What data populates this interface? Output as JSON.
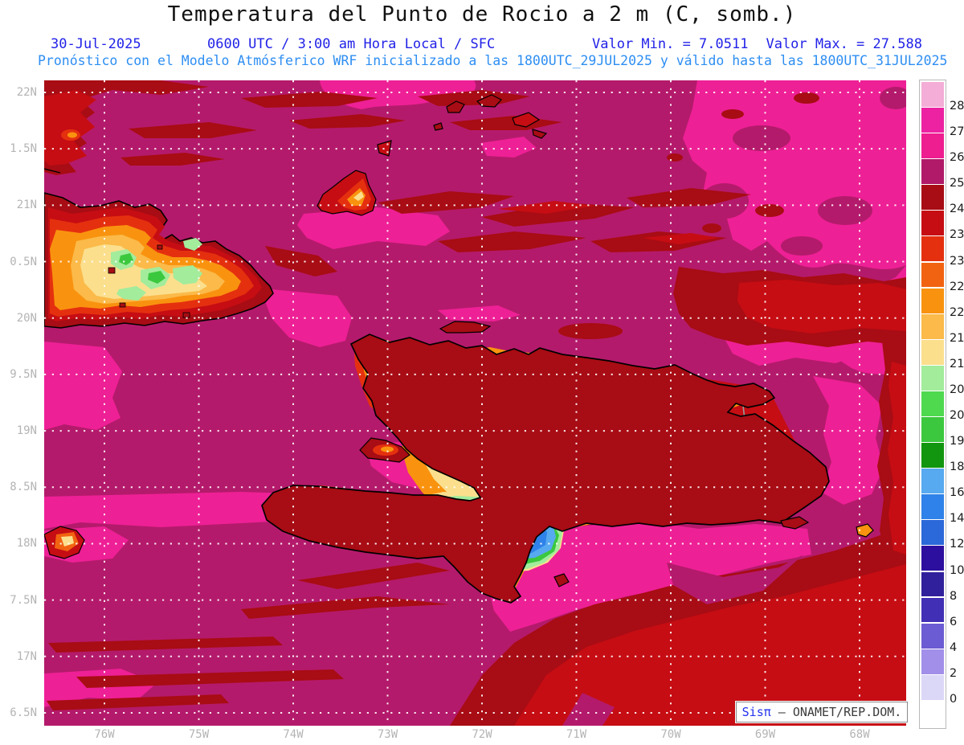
{
  "header": {
    "title": "Temperatura del Punto de Rocio a 2 m (C, somb.)",
    "date": "30-Jul-2025",
    "time_info": "0600 UTC / 3:00 am Hora Local / SFC",
    "valor_min": "Valor Min. = 7.0511",
    "valor_max": "Valor Max. = 27.588",
    "model_info": "Pronóstico con el Modelo Atmósferico WRF inicializado a las 1800UTC_29JUL2025 y válido hasta las  1800UTC_31JUL2025"
  },
  "axes": {
    "lat_labels": [
      "22N",
      "1.5N",
      "21N",
      "0.5N",
      "20N",
      "9.5N",
      "19N",
      "8.5N",
      "18N",
      "7.5N",
      "17N",
      "6.5N"
    ],
    "lon_labels": [
      "76W",
      "75W",
      "74W",
      "73W",
      "72W",
      "71W",
      "70W",
      "69W",
      "68W"
    ]
  },
  "colorbar": {
    "levels": [
      "28",
      "27",
      "26",
      "25",
      "24.5",
      "23.5",
      "23",
      "22.5",
      "22",
      "21.5",
      "21",
      "20.5",
      "20",
      "19",
      "18",
      "16",
      "14",
      "12",
      "10",
      "8",
      "6",
      "4",
      "2",
      "0"
    ],
    "colors": [
      "#f4add6",
      "#ec22a2",
      "#ee1e90",
      "#b01a68",
      "#a80c14",
      "#c60d13",
      "#e5300f",
      "#f26311",
      "#f9930f",
      "#fbba49",
      "#fbdf8d",
      "#a2ec9c",
      "#4fd94f",
      "#3bc83e",
      "#12960f",
      "#57a9f0",
      "#2f82e9",
      "#2b68d9",
      "#2d0f9f",
      "#31209c",
      "#4130b5",
      "#6c5cd3",
      "#a18fe9",
      "#dbd7f7",
      "#ffffff"
    ]
  },
  "attribution": {
    "brand": "Sisπ",
    "text": " – ONAMET/REP.DOM."
  },
  "chart_data": {
    "type": "heatmap",
    "title": "Temperatura del Punto de Rocio a 2 m (C, somb.)",
    "units": "C",
    "valor_min": 7.0511,
    "valor_max": 27.588,
    "valid_date": "30-Jul-2025",
    "valid_time": "0600 UTC / 3:00 am Hora Local / SFC",
    "model_run": "1800UTC_29JUL2025",
    "valid_until": "1800UTC_31JUL2025",
    "lon_ticks_deg_w": [
      76,
      75,
      74,
      73,
      72,
      71,
      70,
      69,
      68
    ],
    "lat_ticks_deg_n": [
      22,
      21.5,
      21,
      20.5,
      20,
      19.5,
      19,
      18.5,
      18,
      17.5,
      17,
      16.5
    ],
    "scale_boundaries": [
      28,
      27,
      26,
      25,
      24.5,
      23.5,
      23,
      22.5,
      22,
      21.5,
      21,
      20.5,
      20,
      19,
      18,
      16,
      14,
      12,
      10,
      8,
      6,
      4,
      2,
      0
    ],
    "scale_colors_top_to_bottom": [
      "#f4add6",
      "#ec22a2",
      "#ee1e90",
      "#b01a68",
      "#a80c14",
      "#c60d13",
      "#e5300f",
      "#f26311",
      "#f9930f",
      "#fbba49",
      "#fbdf8d",
      "#a2ec9c",
      "#4fd94f",
      "#3bc83e",
      "#12960f",
      "#57a9f0",
      "#2f82e9",
      "#2b68d9",
      "#2d0f9f",
      "#31209c",
      "#4130b5",
      "#6c5cd3",
      "#a18fe9",
      "#dbd7f7",
      "#ffffff"
    ],
    "regions_approx_dewpoint_c": {
      "open_ocean_background": 25.5,
      "ocean_warm_pink_patches": 26.5,
      "ocean_dark_red_streaks": 24.7,
      "caribbean_red_mass_southeast": 24.0,
      "cuba_interior_yellow_green": 20.8,
      "haiti_dr_lowlands_orange": 22.2,
      "cordillera_central_blue_core": 11.0,
      "sierra_bahoruco_blue_core": 11.5,
      "green_highlands": 19.5
    }
  }
}
